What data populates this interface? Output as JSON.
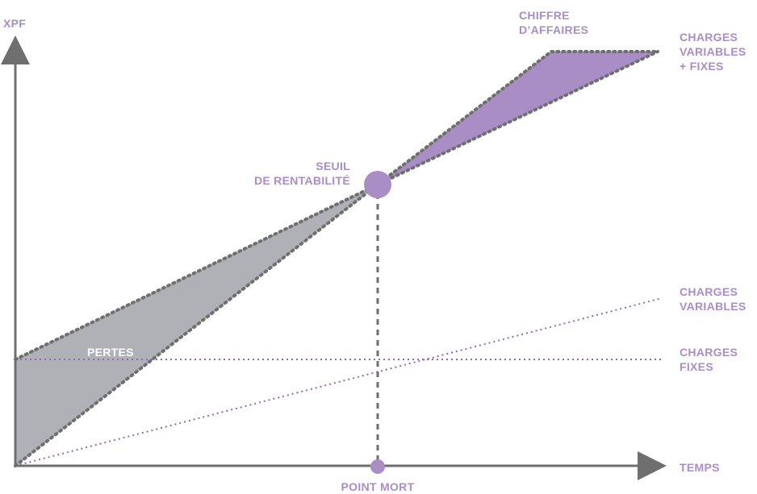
{
  "colors": {
    "accent": "#a98ec6",
    "accent_dark": "#8f6bb6",
    "loss_fill": "#b0b1b6",
    "axis": "#6f6f6f",
    "dots": "#6f6f6f",
    "label_white": "#ffffff"
  },
  "axes": {
    "y_label": "XPF",
    "x_label": "TEMPS"
  },
  "labels": {
    "chiffre_affaires": [
      "CHIFFRE",
      "D’AFFAIRES"
    ],
    "charges_variables_fixes": [
      "CHARGES",
      "VARIABLES",
      "+ FIXES"
    ],
    "seuil": [
      "SEUIL",
      "DE RENTABILITÉ"
    ],
    "charges_variables": [
      "CHARGES",
      "VARIABLES"
    ],
    "charges_fixes": [
      "CHARGES",
      "FIXES"
    ],
    "pertes": "PERTES",
    "point_mort": "POINT MORT"
  }
}
